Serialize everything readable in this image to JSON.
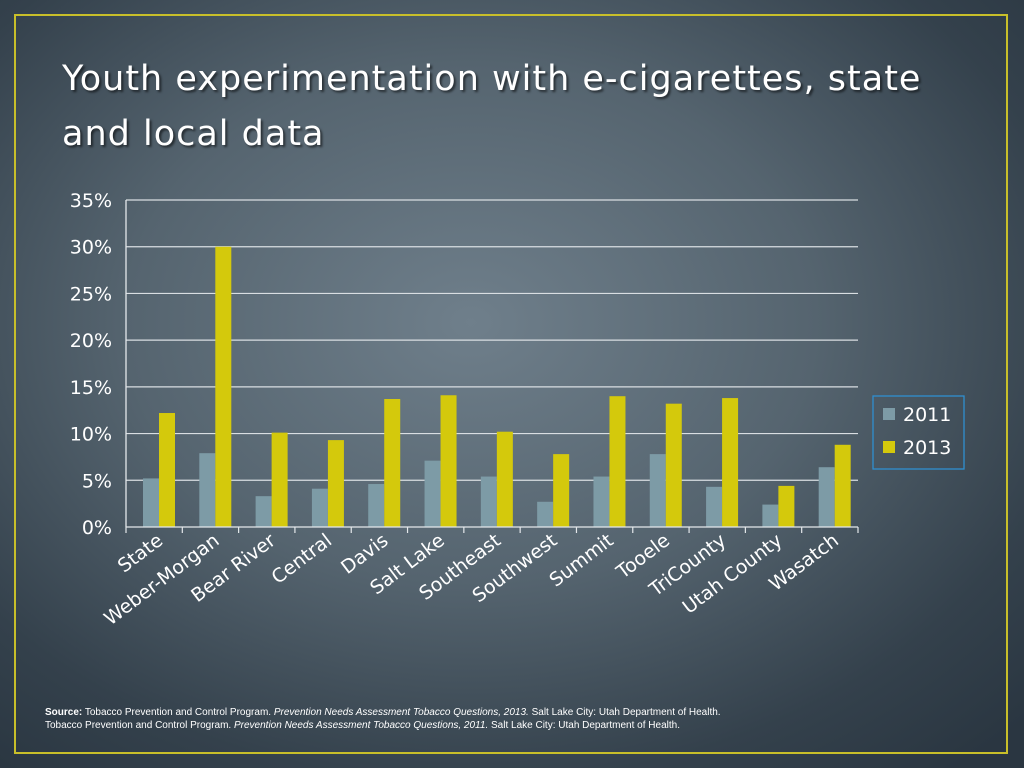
{
  "slide": {
    "title": "Youth experimentation with e-cigarettes, state and local data",
    "border_color": "#c8bf2a"
  },
  "chart_data": {
    "type": "bar",
    "title": "",
    "xlabel": "",
    "ylabel": "",
    "categories": [
      "State",
      "Weber-Morgan",
      "Bear River",
      "Central",
      "Davis",
      "Salt Lake",
      "Southeast",
      "Southwest",
      "Summit",
      "Tooele",
      "TriCounty",
      "Utah County",
      "Wasatch"
    ],
    "series": [
      {
        "name": "2011",
        "color": "#7d9ba6",
        "values": [
          5.2,
          7.9,
          3.3,
          4.1,
          4.6,
          7.1,
          5.4,
          2.7,
          5.4,
          7.8,
          4.3,
          2.4,
          6.4
        ]
      },
      {
        "name": "2013",
        "color": "#d4c90c",
        "values": [
          12.2,
          30.0,
          10.1,
          9.3,
          13.7,
          14.1,
          10.2,
          7.8,
          14.0,
          13.2,
          13.8,
          4.4,
          8.8
        ]
      }
    ],
    "ylim": [
      0,
      35
    ],
    "yticks": [
      0,
      5,
      10,
      15,
      20,
      25,
      30,
      35
    ],
    "ytick_labels": [
      "0%",
      "5%",
      "10%",
      "15%",
      "20%",
      "25%",
      "30%",
      "35%"
    ],
    "grid": true,
    "legend_position": "right",
    "legend_border_color": "#2f8fd0"
  },
  "source": {
    "label": "Source:",
    "line1_plain1": "Tobacco Prevention and Control Program.",
    "line1_italic": "Prevention Needs Assessment Tobacco Questions, 2013.",
    "line1_plain2": "Salt Lake City: Utah Department of Health.",
    "line2_plain1": "Tobacco Prevention and Control Program.",
    "line2_italic": "Prevention Needs Assessment Tobacco Questions, 2011.",
    "line2_plain2": "Salt Lake City: Utah Department of Health."
  }
}
